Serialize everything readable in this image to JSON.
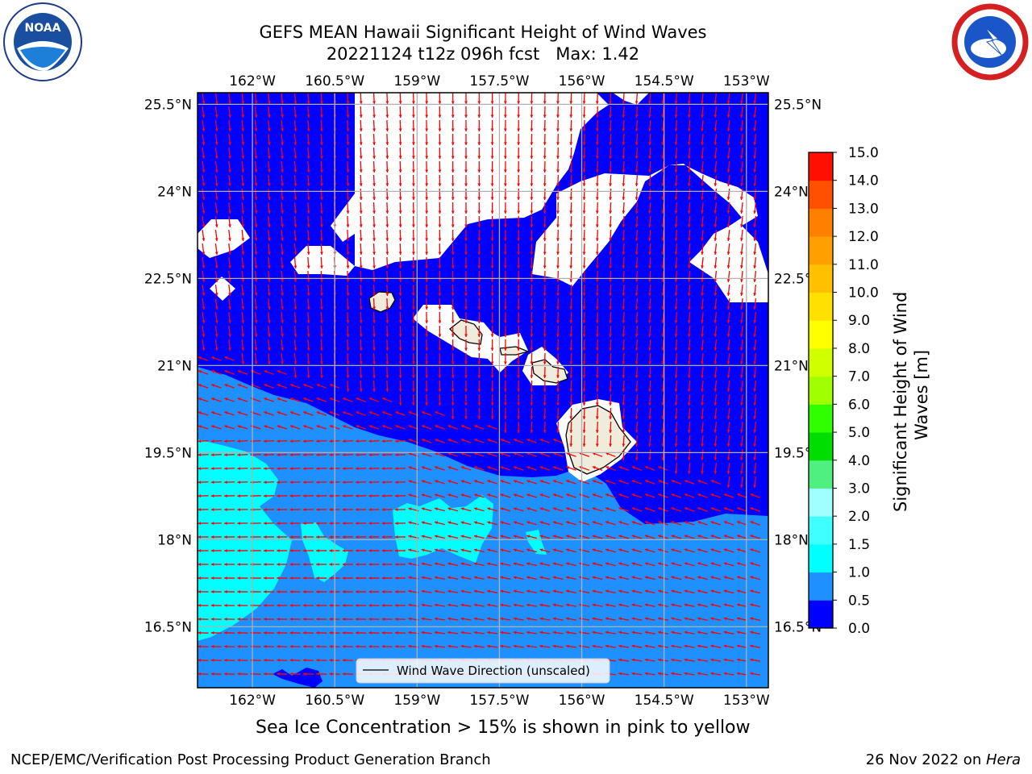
{
  "header": {
    "title_line1": "GEFS MEAN Hawaii Significant Height of Wind Waves",
    "title_line2": "20221124 t12z 096h fcst   Max: 1.42"
  },
  "logos": {
    "left": {
      "name": "noaa-logo",
      "text": "NOAA",
      "ring_text": "NATIONAL OCEANIC AND ATMOSPHERIC ADMINISTRATION · U.S. DEPARTMENT OF COMMERCE"
    },
    "right": {
      "name": "nws-logo",
      "ring_text": "NATIONAL WEATHER SERVICE"
    }
  },
  "note": "Sea Ice Concentration > 15% is shown in pink to yellow",
  "footer": {
    "left": "NCEP/EMC/Verification Post Processing Product Generation Branch",
    "right_date": "26 Nov 2022 on ",
    "right_machine": "Hera"
  },
  "legend": {
    "label": "Wind Wave Direction (unscaled)"
  },
  "colors": {
    "calm_sea": "#0000ff",
    "low_sea": "#1e90ff",
    "moderate_sea": "#00ffff",
    "arrow": "#ff0000",
    "land": "#efecdc",
    "grid": "#b0b0b0"
  },
  "chart_data": {
    "type": "heatmap",
    "title": "GEFS MEAN Hawaii Significant Height of Wind Waves",
    "subtitle": "20221124 t12z 096h fcst   Max: 1.42",
    "max": 1.42,
    "x_ticks": [
      "162°W",
      "160.5°W",
      "159°W",
      "157.5°W",
      "156°W",
      "154.5°W",
      "153°W"
    ],
    "x_tick_values": [
      -162,
      -160.5,
      -159,
      -157.5,
      -156,
      -154.5,
      -153
    ],
    "y_ticks": [
      "25.5°N",
      "24°N",
      "22.5°N",
      "21°N",
      "19.5°N",
      "18°N",
      "16.5°N"
    ],
    "y_tick_values": [
      25.5,
      24,
      22.5,
      21,
      19.5,
      18,
      16.5
    ],
    "xlim": [
      -163,
      -152.6
    ],
    "ylim": [
      15.45,
      25.7
    ],
    "grid": true,
    "colorbar": {
      "label": "Significant Height of Wind Waves [m]",
      "levels": [
        0.0,
        0.5,
        1.0,
        1.5,
        2.0,
        3.0,
        4.0,
        5.0,
        6.0,
        7.0,
        8.0,
        9.0,
        10.0,
        11.0,
        12.0,
        13.0,
        14.0,
        15.0
      ],
      "tick_labels": [
        "0.0",
        "0.5",
        "1.0",
        "1.5",
        "2.0",
        "3.0",
        "4.0",
        "5.0",
        "6.0",
        "7.0",
        "8.0",
        "9.0",
        "10.0",
        "11.0",
        "12.0",
        "13.0",
        "14.0",
        "15.0"
      ],
      "colors": [
        "#0000ff",
        "#1e90ff",
        "#00ffff",
        "#40ffff",
        "#a0ffff",
        "#50f080",
        "#00dd00",
        "#30ff00",
        "#a0ff00",
        "#d0ff00",
        "#ffff00",
        "#ffe000",
        "#ffc000",
        "#ffa000",
        "#ff8000",
        "#ff5000",
        "#ff1000"
      ]
    },
    "legend": "Wind Wave Direction (unscaled)",
    "legend_position": "bottom-center"
  }
}
